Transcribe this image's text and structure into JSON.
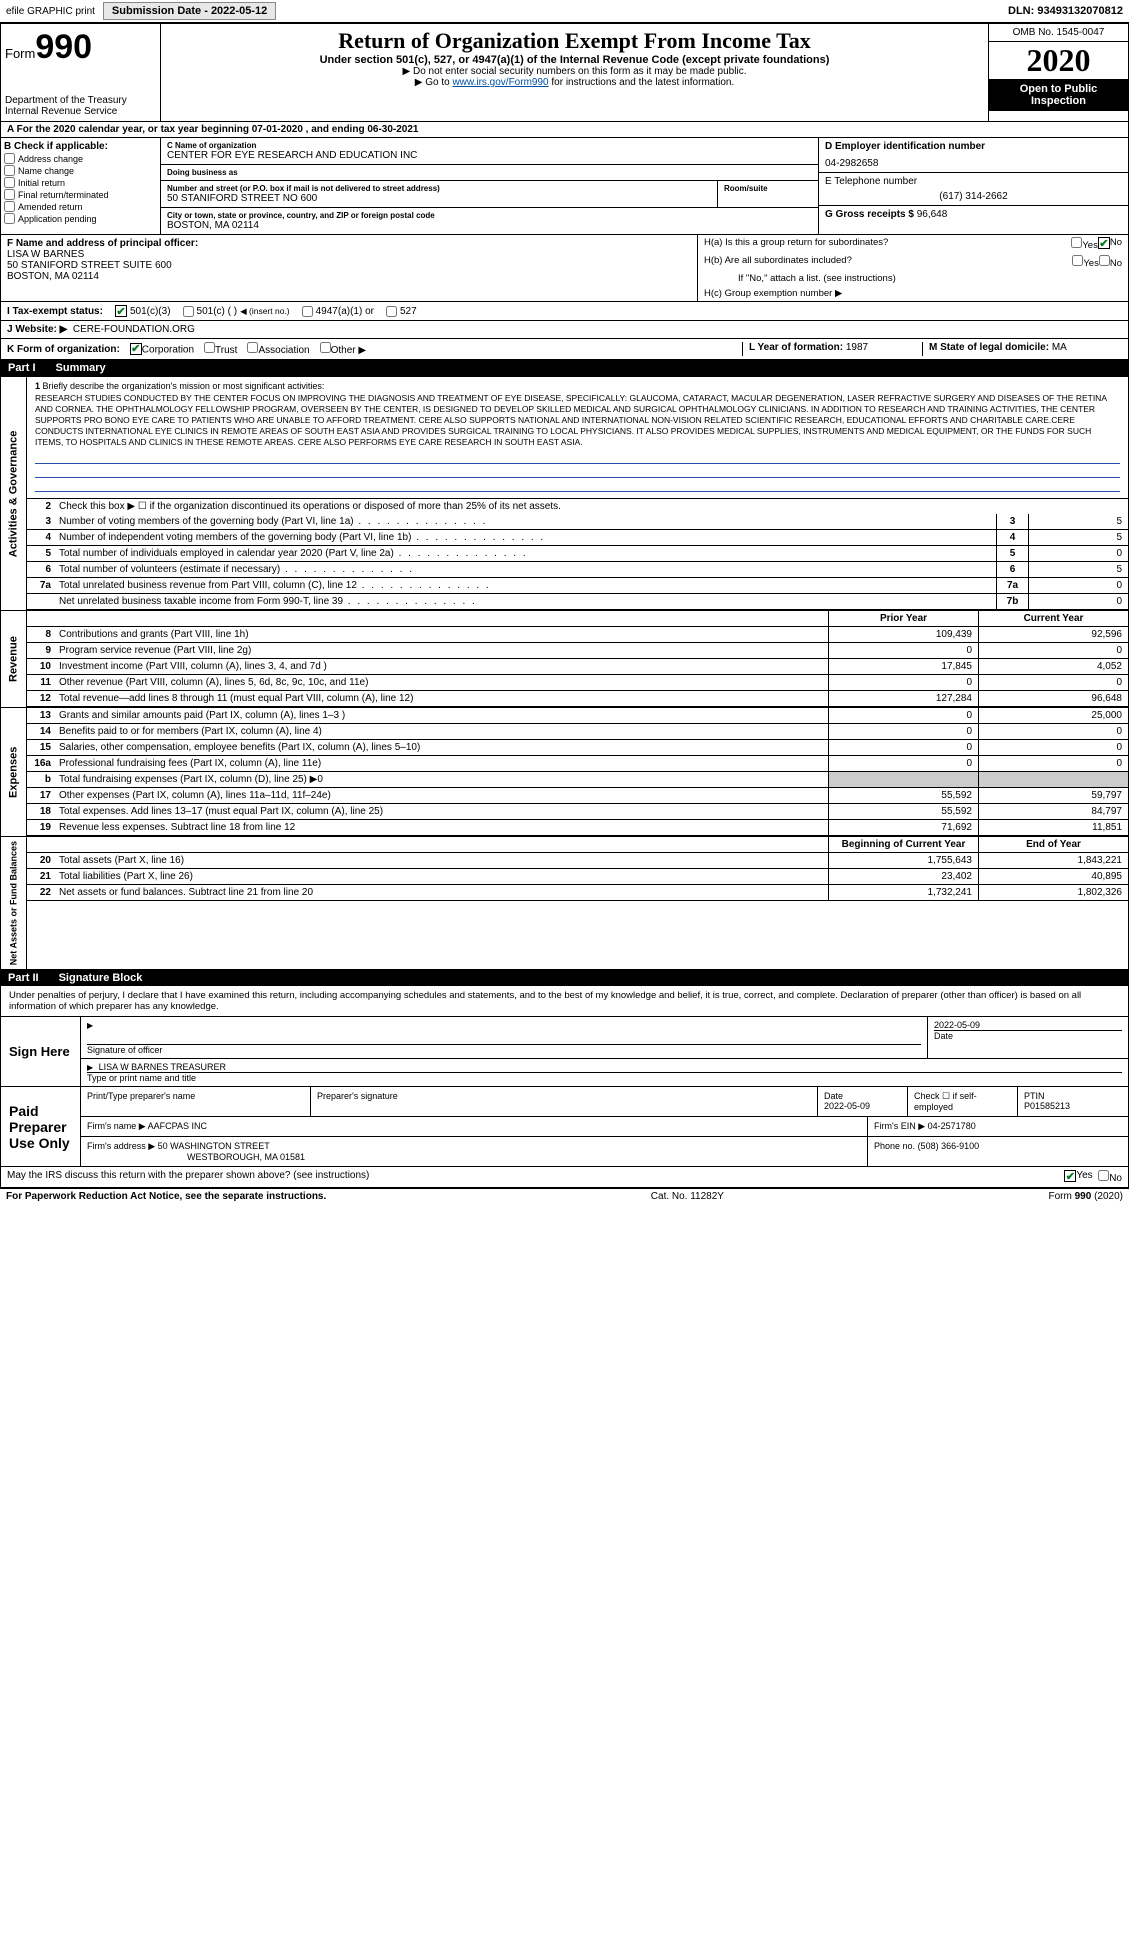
{
  "top": {
    "efile": "efile GRAPHIC print",
    "submission": "Submission Date - 2022-05-12",
    "dln": "DLN: 93493132070812"
  },
  "header": {
    "form_label": "Form",
    "form_num": "990",
    "dept": "Department of the Treasury\nInternal Revenue Service",
    "title": "Return of Organization Exempt From Income Tax",
    "subtitle": "Under section 501(c), 527, or 4947(a)(1) of the Internal Revenue Code (except private foundations)",
    "note1": "▶ Do not enter social security numbers on this form as it may be made public.",
    "note2_pre": "▶ Go to ",
    "note2_link": "www.irs.gov/Form990",
    "note2_post": " for instructions and the latest information.",
    "omb": "OMB No. 1545-0047",
    "year": "2020",
    "open": "Open to Public Inspection"
  },
  "period": {
    "text_pre": "A For the 2020 calendar year, or tax year beginning ",
    "begin": "07-01-2020",
    "mid": " , and ending ",
    "end": "06-30-2021"
  },
  "B": {
    "header": "B Check if applicable:",
    "items": [
      "Address change",
      "Name change",
      "Initial return",
      "Final return/terminated",
      "Amended return",
      "Application pending"
    ]
  },
  "C": {
    "name_lbl": "C Name of organization",
    "name": "CENTER FOR EYE RESEARCH AND EDUCATION INC",
    "dba_lbl": "Doing business as",
    "dba": "",
    "addr_lbl": "Number and street (or P.O. box if mail is not delivered to street address)",
    "addr": "50 STANIFORD STREET NO 600",
    "room_lbl": "Room/suite",
    "room": "",
    "city_lbl": "City or town, state or province, country, and ZIP or foreign postal code",
    "city": "BOSTON, MA  02114"
  },
  "D": {
    "ein_lbl": "D Employer identification number",
    "ein": "04-2982658",
    "phone_lbl": "E Telephone number",
    "phone": "(617) 314-2662",
    "gross_lbl": "G Gross receipts $",
    "gross": "96,648"
  },
  "F": {
    "lbl": "F  Name and address of principal officer:",
    "name": "LISA W BARNES",
    "addr1": "50 STANIFORD STREET SUITE 600",
    "addr2": "BOSTON, MA  02114"
  },
  "H": {
    "a": "H(a)  Is this a group return for subordinates?",
    "b": "H(b)  Are all subordinates included?",
    "b_note": "If \"No,\" attach a list. (see instructions)",
    "c": "H(c)  Group exemption number ▶",
    "yes": "Yes",
    "no": "No"
  },
  "I": {
    "lbl": "I    Tax-exempt status:",
    "o1": "501(c)(3)",
    "o2": "501(c) (  )",
    "o2_note": "◀ (insert no.)",
    "o3": "4947(a)(1) or",
    "o4": "527"
  },
  "J": {
    "lbl": "J   Website: ▶",
    "val": "CERE-FOUNDATION.ORG"
  },
  "K": {
    "lbl": "K Form of organization:",
    "corp": "Corporation",
    "trust": "Trust",
    "assoc": "Association",
    "other": "Other ▶",
    "L_lbl": "L Year of formation:",
    "L_val": "1987",
    "M_lbl": "M State of legal domicile:",
    "M_val": "MA"
  },
  "part1": {
    "label": "Part I",
    "title": "Summary"
  },
  "summary": {
    "q1_lbl": "1",
    "q1_text": "Briefly describe the organization's mission or most significant activities:",
    "mission": "RESEARCH STUDIES CONDUCTED BY THE CENTER FOCUS ON IMPROVING THE DIAGNOSIS AND TREATMENT OF EYE DISEASE, SPECIFICALLY: GLAUCOMA, CATARACT, MACULAR DEGENERATION, LASER REFRACTIVE SURGERY AND DISEASES OF THE RETINA AND CORNEA. THE OPHTHALMOLOGY FELLOWSHIP PROGRAM, OVERSEEN BY THE CENTER, IS DESIGNED TO DEVELOP SKILLED MEDICAL AND SURGICAL OPHTHALMOLOGY CLINICIANS. IN ADDITION TO RESEARCH AND TRAINING ACTIVITIES, THE CENTER SUPPORTS PRO BONO EYE CARE TO PATIENTS WHO ARE UNABLE TO AFFORD TREATMENT. CERE ALSO SUPPORTS NATIONAL AND INTERNATIONAL NON-VISION RELATED SCIENTIFIC RESEARCH, EDUCATIONAL EFFORTS AND CHARITABLE CARE.CERE CONDUCTS INTERNATIONAL EYE CLINICS IN REMOTE AREAS OF SOUTH EAST ASIA AND PROVIDES SURGICAL TRAINING TO LOCAL PHYSICIANS. IT ALSO PROVIDES MEDICAL SUPPLIES, INSTRUMENTS AND MEDICAL EQUIPMENT, OR THE FUNDS FOR SUCH ITEMS, TO HOSPITALS AND CLINICS IN THESE REMOTE AREAS. CERE ALSO PERFORMS EYE CARE RESEARCH IN SOUTH EAST ASIA.",
    "q2": "Check this box ▶ ☐ if the organization discontinued its operations or disposed of more than 25% of its net assets.",
    "lines_small": [
      {
        "n": "3",
        "d": "Number of voting members of the governing body (Part VI, line 1a)",
        "box": "3",
        "v": "5"
      },
      {
        "n": "4",
        "d": "Number of independent voting members of the governing body (Part VI, line 1b)",
        "box": "4",
        "v": "5"
      },
      {
        "n": "5",
        "d": "Total number of individuals employed in calendar year 2020 (Part V, line 2a)",
        "box": "5",
        "v": "0"
      },
      {
        "n": "6",
        "d": "Total number of volunteers (estimate if necessary)",
        "box": "6",
        "v": "5"
      },
      {
        "n": "7a",
        "d": "Total unrelated business revenue from Part VIII, column (C), line 12",
        "box": "7a",
        "v": "0"
      },
      {
        "n": "",
        "d": "Net unrelated business taxable income from Form 990-T, line 39",
        "box": "7b",
        "v": "0"
      }
    ],
    "col_headers": {
      "prior": "Prior Year",
      "curr": "Current Year",
      "boyr": "Beginning of Current Year",
      "eoyr": "End of Year"
    },
    "revenue": [
      {
        "n": "8",
        "d": "Contributions and grants (Part VIII, line 1h)",
        "p": "109,439",
        "c": "92,596"
      },
      {
        "n": "9",
        "d": "Program service revenue (Part VIII, line 2g)",
        "p": "0",
        "c": "0"
      },
      {
        "n": "10",
        "d": "Investment income (Part VIII, column (A), lines 3, 4, and 7d )",
        "p": "17,845",
        "c": "4,052"
      },
      {
        "n": "11",
        "d": "Other revenue (Part VIII, column (A), lines 5, 6d, 8c, 9c, 10c, and 11e)",
        "p": "0",
        "c": "0"
      },
      {
        "n": "12",
        "d": "Total revenue—add lines 8 through 11 (must equal Part VIII, column (A), line 12)",
        "p": "127,284",
        "c": "96,648"
      }
    ],
    "expenses": [
      {
        "n": "13",
        "d": "Grants and similar amounts paid (Part IX, column (A), lines 1–3 )",
        "p": "0",
        "c": "25,000"
      },
      {
        "n": "14",
        "d": "Benefits paid to or for members (Part IX, column (A), line 4)",
        "p": "0",
        "c": "0"
      },
      {
        "n": "15",
        "d": "Salaries, other compensation, employee benefits (Part IX, column (A), lines 5–10)",
        "p": "0",
        "c": "0"
      },
      {
        "n": "16a",
        "d": "Professional fundraising fees (Part IX, column (A), line 11e)",
        "p": "0",
        "c": "0"
      },
      {
        "n": "b",
        "d": "Total fundraising expenses (Part IX, column (D), line 25) ▶0",
        "p": "",
        "c": "",
        "shade": true
      },
      {
        "n": "17",
        "d": "Other expenses (Part IX, column (A), lines 11a–11d, 11f–24e)",
        "p": "55,592",
        "c": "59,797"
      },
      {
        "n": "18",
        "d": "Total expenses. Add lines 13–17 (must equal Part IX, column (A), line 25)",
        "p": "55,592",
        "c": "84,797"
      },
      {
        "n": "19",
        "d": "Revenue less expenses. Subtract line 18 from line 12",
        "p": "71,692",
        "c": "11,851"
      }
    ],
    "netassets": [
      {
        "n": "20",
        "d": "Total assets (Part X, line 16)",
        "p": "1,755,643",
        "c": "1,843,221"
      },
      {
        "n": "21",
        "d": "Total liabilities (Part X, line 26)",
        "p": "23,402",
        "c": "40,895"
      },
      {
        "n": "22",
        "d": "Net assets or fund balances. Subtract line 21 from line 20",
        "p": "1,732,241",
        "c": "1,802,326"
      }
    ]
  },
  "vtabs": {
    "ag": "Activities & Governance",
    "rev": "Revenue",
    "exp": "Expenses",
    "na": "Net Assets or Fund Balances"
  },
  "part2": {
    "label": "Part II",
    "title": "Signature Block"
  },
  "sig": {
    "decl": "Under penalties of perjury, I declare that I have examined this return, including accompanying schedules and statements, and to the best of my knowledge and belief, it is true, correct, and complete. Declaration of preparer (other than officer) is based on all information of which preparer has any knowledge.",
    "sign_here": "Sign Here",
    "sig_officer": "Signature of officer",
    "date_lbl": "Date",
    "date": "2022-05-09",
    "name_title": "LISA W BARNES TREASURER",
    "type_name": "Type or print name and title",
    "paid": "Paid Preparer Use Only",
    "pt_name_lbl": "Print/Type preparer's name",
    "pt_sig_lbl": "Preparer's signature",
    "pt_date_lbl": "Date",
    "pt_date": "2022-05-09",
    "pt_check_lbl": "Check ☐ if self-employed",
    "ptin_lbl": "PTIN",
    "ptin": "P01585213",
    "firm_name_lbl": "Firm's name    ▶",
    "firm_name": "AAFCPAS INC",
    "firm_ein_lbl": "Firm's EIN ▶",
    "firm_ein": "04-2571780",
    "firm_addr_lbl": "Firm's address ▶",
    "firm_addr1": "50 WASHINGTON STREET",
    "firm_addr2": "WESTBOROUGH, MA  01581",
    "firm_phone_lbl": "Phone no.",
    "firm_phone": "(508) 366-9100",
    "discuss": "May the IRS discuss this return with the preparer shown above? (see instructions)",
    "yes": "Yes",
    "no": "No"
  },
  "footer": {
    "left": "For Paperwork Reduction Act Notice, see the separate instructions.",
    "mid": "Cat. No. 11282Y",
    "right": "Form 990 (2020)"
  },
  "colors": {
    "link": "#004fa3",
    "underline": "#2a4fb0",
    "check": "#0a7a20"
  }
}
